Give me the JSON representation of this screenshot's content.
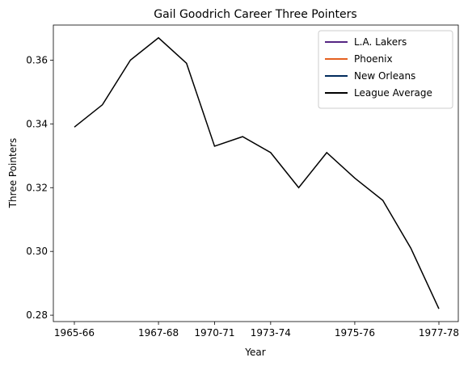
{
  "chart_data": {
    "type": "line",
    "title": "Gail Goodrich Career Three Pointers",
    "xlabel": "Year",
    "ylabel": "Three Pointers",
    "categories": [
      "1965-66",
      null,
      null,
      "1967-68",
      null,
      "1970-71",
      null,
      "1973-74",
      null,
      null,
      "1975-76",
      null,
      null,
      "1977-78"
    ],
    "series": [
      {
        "name": "L.A. Lakers",
        "color": "#552583",
        "values": [
          null,
          null,
          null,
          null,
          null,
          null,
          null,
          null,
          null,
          null,
          null,
          null,
          null,
          null
        ]
      },
      {
        "name": "Phoenix",
        "color": "#e56020",
        "values": [
          null,
          null,
          null,
          null,
          null,
          null,
          null,
          null,
          null,
          null,
          null,
          null,
          null,
          null
        ]
      },
      {
        "name": "New Orleans",
        "color": "#002b5c",
        "values": [
          null,
          null,
          null,
          null,
          null,
          null,
          null,
          null,
          null,
          null,
          null,
          null,
          null,
          null
        ]
      },
      {
        "name": "League Average",
        "color": "#000000",
        "values": [
          0.339,
          0.346,
          0.36,
          0.367,
          0.359,
          0.333,
          0.336,
          0.331,
          0.32,
          0.331,
          0.323,
          0.316,
          0.301,
          0.282
        ]
      }
    ],
    "ylim": [
      0.278,
      0.371
    ],
    "yticks": [
      0.28,
      {
        "value": 0.3,
        "label": "0.30"
      },
      0.32,
      0.34,
      0.36
    ],
    "legend": "upper right",
    "grid": false
  }
}
